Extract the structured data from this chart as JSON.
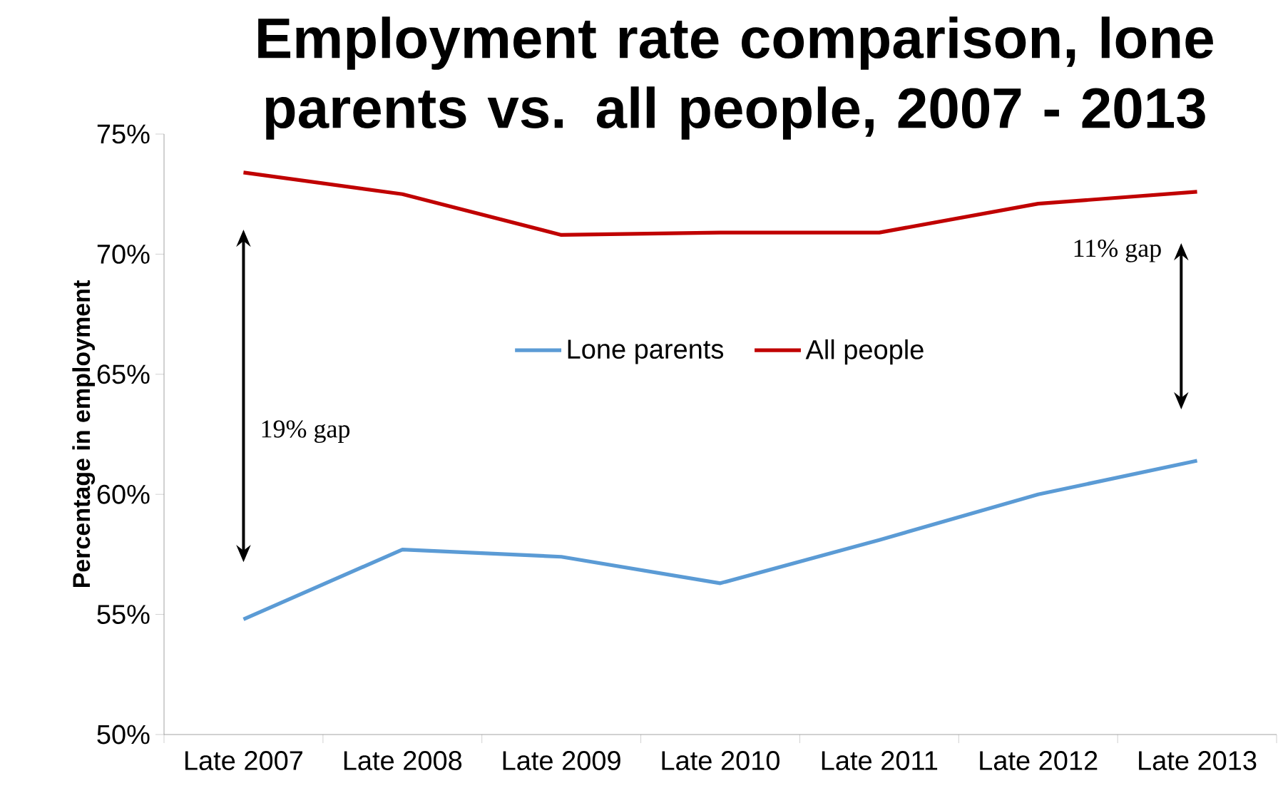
{
  "chart_data": {
    "type": "line",
    "title": "Employment rate comparison, lone parents vs. all people, 2007 - 2013",
    "ylabel": "Percentage in employment",
    "categories": [
      "Late 2007",
      "Late 2008",
      "Late 2009",
      "Late 2010",
      "Late 2011",
      "Late 2012",
      "Late 2013"
    ],
    "series": [
      {
        "name": "Lone parents",
        "color": "#5b9bd5",
        "values": [
          54.8,
          57.7,
          57.4,
          56.3,
          58.1,
          60.0,
          61.4
        ]
      },
      {
        "name": "All people",
        "color": "#c00000",
        "values": [
          73.4,
          72.5,
          70.8,
          70.9,
          70.9,
          72.1,
          72.6
        ]
      }
    ],
    "ylim": [
      50,
      75
    ],
    "yticks": [
      {
        "value": 50,
        "label": "50%"
      },
      {
        "value": 55,
        "label": "55%"
      },
      {
        "value": 60,
        "label": "60%"
      },
      {
        "value": 65,
        "label": "65%"
      },
      {
        "value": 70,
        "label": "70%"
      },
      {
        "value": 75,
        "label": "75%"
      }
    ],
    "annotations": [
      "19% gap",
      "11% gap"
    ],
    "legend": "top",
    "grid": false,
    "marker": "none",
    "line_style": "solid"
  }
}
